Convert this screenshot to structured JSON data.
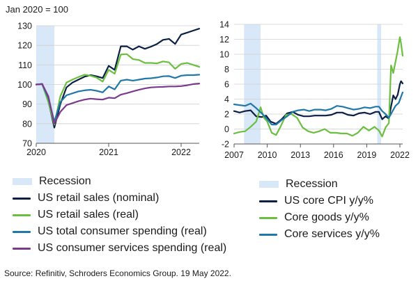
{
  "left_unit_label": "Jan 2020 = 100",
  "source": "Source: Refinitiv, Schroders Economics Group. 19 May 2022.",
  "chart_data": [
    {
      "type": "line",
      "title": "",
      "xlabel": "",
      "ylabel": "Jan 2020 = 100",
      "x_ticks": [
        "2020",
        "2021",
        "2022"
      ],
      "x_tick_values": [
        2020,
        2021,
        2022
      ],
      "xlim": [
        2020.0,
        2022.25
      ],
      "ylim": [
        70,
        130
      ],
      "y_ticks": [
        70,
        80,
        90,
        100,
        110,
        120,
        130
      ],
      "grid": "horizontal",
      "recession_shade": [
        [
          2020.0,
          2020.25
        ]
      ],
      "legend": [
        {
          "label": "Recession",
          "kind": "shade",
          "color": "#d9e8f8"
        },
        {
          "label": "US retail sales (nominal)",
          "kind": "line",
          "color": "#0b1f45"
        },
        {
          "label": "US retail sales (real)",
          "kind": "line",
          "color": "#6abf3e"
        },
        {
          "label": "US total consumer spending (real)",
          "kind": "line",
          "color": "#1f78a8"
        },
        {
          "label": "US consumer services spending (real)",
          "kind": "line",
          "color": "#7b3a8c"
        }
      ],
      "series": [
        {
          "name": "US retail sales (nominal)",
          "color": "#0b1f45",
          "x": [
            2020.0,
            2020.083,
            2020.167,
            2020.25,
            2020.333,
            2020.417,
            2020.5,
            2020.583,
            2020.667,
            2020.75,
            2020.833,
            2020.917,
            2021.0,
            2021.083,
            2021.167,
            2021.25,
            2021.333,
            2021.417,
            2021.5,
            2021.583,
            2021.667,
            2021.75,
            2021.833,
            2021.917,
            2022.0,
            2022.083,
            2022.167,
            2022.25
          ],
          "y": [
            100,
            100.3,
            91.5,
            78,
            90,
            98.5,
            101,
            102.5,
            104,
            104.8,
            104.2,
            103.3,
            109.5,
            107.5,
            119.5,
            119.5,
            117.8,
            119.5,
            118.2,
            119.3,
            120.7,
            122.8,
            123.3,
            120.7,
            125.5,
            126.5,
            127.5,
            128.5
          ]
        },
        {
          "name": "US retail sales (real)",
          "color": "#6abf3e",
          "x": [
            2020.0,
            2020.083,
            2020.167,
            2020.25,
            2020.333,
            2020.417,
            2020.5,
            2020.583,
            2020.667,
            2020.75,
            2020.833,
            2020.917,
            2021.0,
            2021.083,
            2021.167,
            2021.25,
            2021.333,
            2021.417,
            2021.5,
            2021.583,
            2021.667,
            2021.75,
            2021.833,
            2021.917,
            2022.0,
            2022.083,
            2022.167,
            2022.25
          ],
          "y": [
            100,
            100.2,
            91,
            79.5,
            94,
            101,
            102.5,
            103.8,
            105,
            104.5,
            103.5,
            101.5,
            107.5,
            105.5,
            115.3,
            115.5,
            113,
            112.5,
            111,
            111,
            110.8,
            111.8,
            111.3,
            108,
            110.5,
            111,
            110,
            109
          ]
        },
        {
          "name": "US total consumer spending (real)",
          "color": "#1f78a8",
          "x": [
            2020.0,
            2020.083,
            2020.167,
            2020.25,
            2020.333,
            2020.417,
            2020.5,
            2020.583,
            2020.667,
            2020.75,
            2020.833,
            2020.917,
            2021.0,
            2021.083,
            2021.167,
            2021.25,
            2021.333,
            2021.417,
            2021.5,
            2021.583,
            2021.667,
            2021.75,
            2021.833,
            2021.917,
            2022.0,
            2022.083,
            2022.167,
            2022.25
          ],
          "y": [
            100,
            100.2,
            93,
            81,
            91,
            94.5,
            95.5,
            96.5,
            97,
            97.3,
            96.8,
            96,
            99,
            97.5,
            102,
            102.5,
            102,
            102.5,
            103,
            103.2,
            103.6,
            104.2,
            104.3,
            103.3,
            104.5,
            104.8,
            104.8,
            105
          ]
        },
        {
          "name": "US consumer services spending (real)",
          "color": "#7b3a8c",
          "x": [
            2020.0,
            2020.083,
            2020.167,
            2020.25,
            2020.333,
            2020.417,
            2020.5,
            2020.583,
            2020.667,
            2020.75,
            2020.833,
            2020.917,
            2021.0,
            2021.083,
            2021.167,
            2021.25,
            2021.333,
            2021.417,
            2021.5,
            2021.583,
            2021.667,
            2021.75,
            2021.833,
            2021.917,
            2022.0,
            2022.083,
            2022.167,
            2022.25
          ],
          "y": [
            100,
            100.2,
            94,
            80,
            86,
            89.5,
            90.5,
            91.5,
            92.3,
            92.8,
            92.5,
            92.3,
            93.3,
            93,
            94.8,
            95.6,
            96.5,
            97.3,
            98,
            98.5,
            98.7,
            98.8,
            99,
            99,
            99.2,
            99.6,
            100.2,
            100.5
          ]
        }
      ]
    },
    {
      "type": "line",
      "title": "",
      "xlabel": "",
      "ylabel": "",
      "x_ticks": [
        "2007",
        "2010",
        "2013",
        "2016",
        "2019",
        "2022"
      ],
      "x_tick_values": [
        2007,
        2010,
        2013,
        2016,
        2019,
        2022
      ],
      "xlim": [
        2007.0,
        2022.25
      ],
      "ylim": [
        -2,
        14
      ],
      "y_ticks": [
        -2,
        0,
        2,
        4,
        6,
        8,
        10,
        12,
        14
      ],
      "grid": "horizontal",
      "recession_shade": [
        [
          2007.9,
          2009.4
        ],
        [
          2019.95,
          2020.3
        ]
      ],
      "legend": [
        {
          "label": "Recession",
          "kind": "shade",
          "color": "#d9e8f8"
        },
        {
          "label": "US core CPI y/y%",
          "kind": "line",
          "color": "#0b1f45"
        },
        {
          "label": "Core goods y/y%",
          "kind": "line",
          "color": "#6abf3e"
        },
        {
          "label": "Core services y/y%",
          "kind": "line",
          "color": "#1f78a8"
        }
      ],
      "series": [
        {
          "name": "US core CPI y/y%",
          "color": "#0b1f45",
          "x": [
            2007.0,
            2007.5,
            2008.0,
            2008.5,
            2009.0,
            2009.5,
            2009.9,
            2010.3,
            2010.8,
            2011.3,
            2011.8,
            2012.3,
            2012.8,
            2013.3,
            2013.8,
            2014.3,
            2014.8,
            2015.3,
            2015.8,
            2016.3,
            2016.8,
            2017.3,
            2017.8,
            2018.3,
            2018.8,
            2019.3,
            2019.8,
            2020.1,
            2020.4,
            2020.7,
            2021.0,
            2021.2,
            2021.4,
            2021.6,
            2021.8,
            2022.0,
            2022.1,
            2022.25
          ],
          "y": [
            2.4,
            2.2,
            2.4,
            2.5,
            1.7,
            1.6,
            1.8,
            1.0,
            0.7,
            1.3,
            2.1,
            2.3,
            1.9,
            1.7,
            1.7,
            1.8,
            1.8,
            1.8,
            1.9,
            2.2,
            2.2,
            1.9,
            1.8,
            2.1,
            2.2,
            2.0,
            2.3,
            2.3,
            1.3,
            1.7,
            1.4,
            3.0,
            4.5,
            4.0,
            4.6,
            6.0,
            6.4,
            6.1
          ]
        },
        {
          "name": "Core goods y/y%",
          "color": "#6abf3e",
          "x": [
            2007.0,
            2007.5,
            2008.0,
            2008.5,
            2009.0,
            2009.4,
            2009.7,
            2010.0,
            2010.4,
            2010.8,
            2011.2,
            2011.7,
            2012.2,
            2012.7,
            2013.2,
            2013.7,
            2014.2,
            2014.7,
            2015.2,
            2015.7,
            2016.2,
            2016.7,
            2017.2,
            2017.7,
            2018.2,
            2018.7,
            2019.2,
            2019.7,
            2020.1,
            2020.4,
            2020.7,
            2021.0,
            2021.2,
            2021.4,
            2021.6,
            2021.8,
            2022.0,
            2022.1,
            2022.25
          ],
          "y": [
            -0.6,
            -0.4,
            -0.3,
            0.3,
            1.0,
            2.9,
            1.5,
            1.0,
            -0.5,
            -0.8,
            0.3,
            1.9,
            2.0,
            1.5,
            0.2,
            -0.3,
            -0.5,
            -0.3,
            0.0,
            -0.5,
            -0.5,
            -0.6,
            -0.6,
            -0.9,
            -0.5,
            0.3,
            -0.2,
            0.3,
            -0.2,
            -1.0,
            0.2,
            0.8,
            8.5,
            7.5,
            9.0,
            10.5,
            12.3,
            11.5,
            9.8
          ]
        },
        {
          "name": "Core services y/y%",
          "color": "#1f78a8",
          "x": [
            2007.0,
            2007.5,
            2008.0,
            2008.5,
            2009.0,
            2009.5,
            2010.0,
            2010.4,
            2010.8,
            2011.3,
            2011.8,
            2012.3,
            2012.8,
            2013.3,
            2013.8,
            2014.3,
            2014.8,
            2015.3,
            2015.8,
            2016.3,
            2016.8,
            2017.3,
            2017.8,
            2018.3,
            2018.8,
            2019.3,
            2019.8,
            2020.1,
            2020.4,
            2020.7,
            2021.0,
            2021.3,
            2021.6,
            2021.9,
            2022.1,
            2022.25
          ],
          "y": [
            3.3,
            3.2,
            3.1,
            3.4,
            2.8,
            2.1,
            1.3,
            0.6,
            0.6,
            1.2,
            1.7,
            2.3,
            2.5,
            2.6,
            2.4,
            2.6,
            2.6,
            2.5,
            2.7,
            3.1,
            3.0,
            2.8,
            2.6,
            2.7,
            2.9,
            2.8,
            3.0,
            3.0,
            2.4,
            2.0,
            1.5,
            2.3,
            3.1,
            3.5,
            4.3,
            4.9
          ]
        }
      ]
    }
  ]
}
